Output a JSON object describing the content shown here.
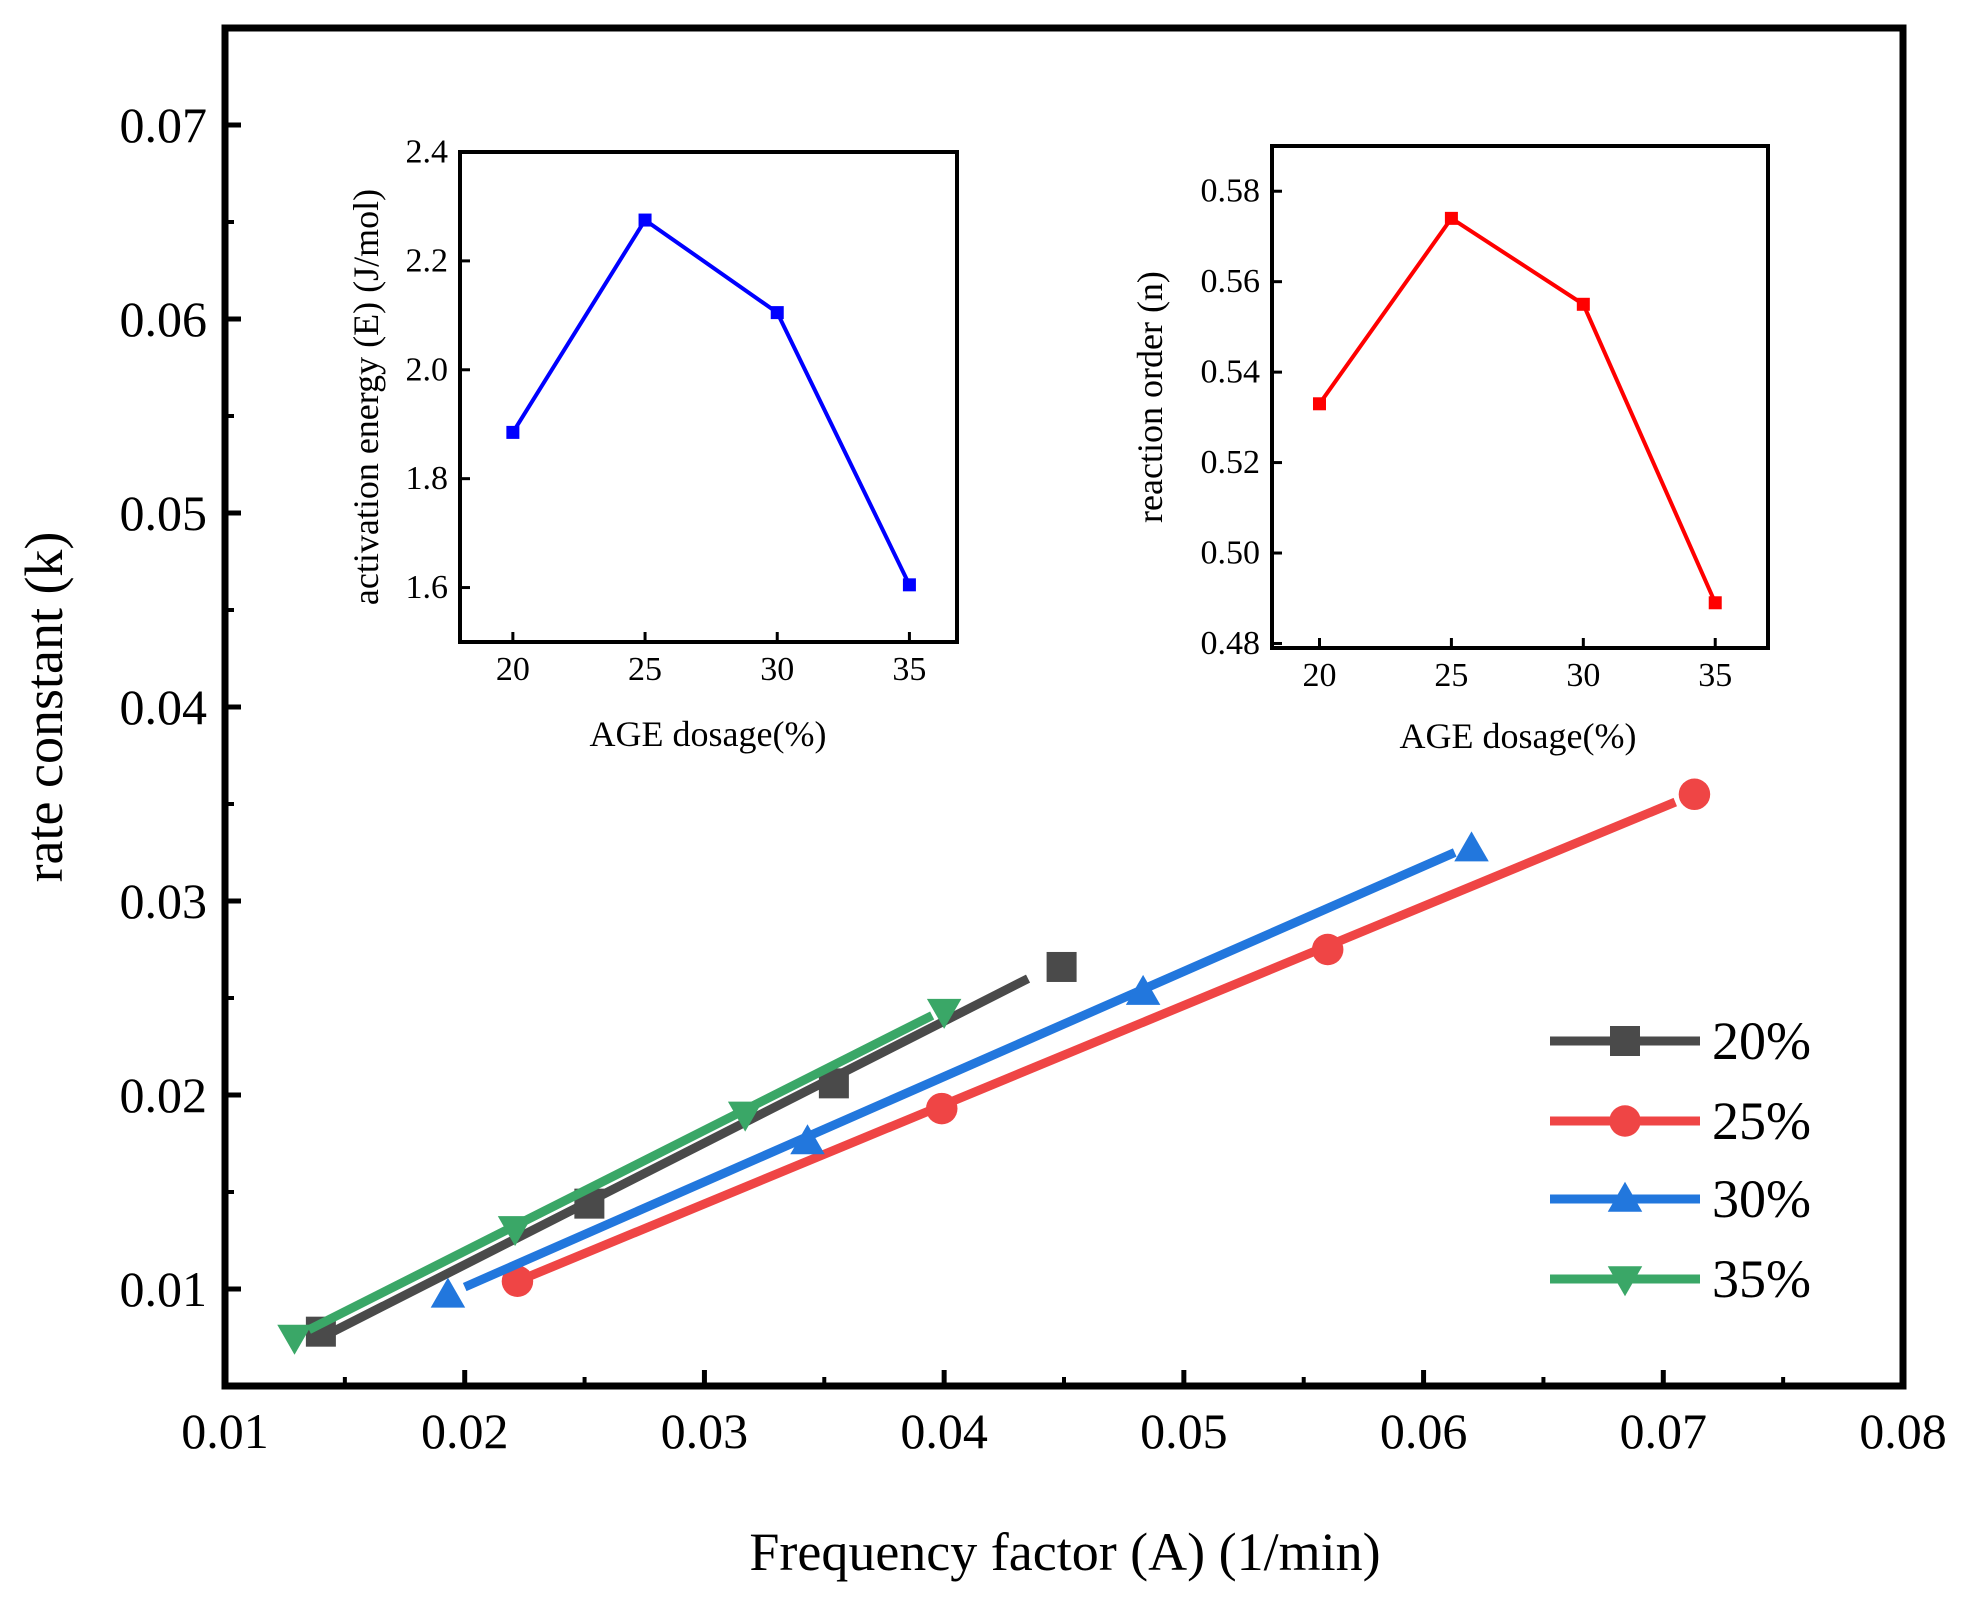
{
  "colors": {
    "s20": "#4a4a4a",
    "s25": "#ef4545",
    "s30": "#2277dd",
    "s35": "#3aa767",
    "inset_energy": "#0000ff",
    "inset_order": "#ff0000"
  },
  "chart_data": [
    {
      "type": "line",
      "xlabel": "Frequency factor (A) (1/min)",
      "ylabel": "rate constant (k)",
      "xlim": [
        0.01,
        0.08
      ],
      "ylim": [
        0.005,
        0.075
      ],
      "xticks": [
        0.01,
        0.02,
        0.03,
        0.04,
        0.05,
        0.06,
        0.07,
        0.08
      ],
      "xtick_labels": [
        "0.01",
        "0.02",
        "0.03",
        "0.04",
        "0.05",
        "0.06",
        "0.07",
        "0.08"
      ],
      "yticks": [
        0.01,
        0.02,
        0.03,
        0.04,
        0.05,
        0.06,
        0.07
      ],
      "ytick_labels": [
        "0.01",
        "0.02",
        "0.03",
        "0.04",
        "0.05",
        "0.06",
        "0.07"
      ],
      "legend_position": "bottom-right",
      "series": [
        {
          "name": "20%",
          "marker": "square",
          "color_key": "s20",
          "points": [
            [
              0.014,
              0.0078
            ],
            [
              0.0252,
              0.0144
            ],
            [
              0.0354,
              0.0206
            ],
            [
              0.0449,
              0.0266
            ]
          ],
          "fit": [
            [
              0.0145,
              0.0078
            ],
            [
              0.0435,
              0.026
            ]
          ]
        },
        {
          "name": "25%",
          "marker": "circle",
          "color_key": "s25",
          "points": [
            [
              0.0222,
              0.0104
            ],
            [
              0.0399,
              0.0193
            ],
            [
              0.056,
              0.0275
            ],
            [
              0.0713,
              0.0355
            ]
          ],
          "fit": [
            [
              0.0222,
              0.0104
            ],
            [
              0.0705,
              0.0351
            ]
          ]
        },
        {
          "name": "30%",
          "marker": "triangle-up",
          "color_key": "s30",
          "points": [
            [
              0.0193,
              0.0097
            ],
            [
              0.0343,
              0.0176
            ],
            [
              0.0483,
              0.0253
            ],
            [
              0.062,
              0.0327
            ]
          ],
          "fit": [
            [
              0.02,
              0.0101
            ],
            [
              0.0613,
              0.0325
            ]
          ]
        },
        {
          "name": "35%",
          "marker": "triangle-down",
          "color_key": "s35",
          "points": [
            [
              0.0129,
              0.0075
            ],
            [
              0.0221,
              0.0131
            ],
            [
              0.0317,
              0.019
            ],
            [
              0.04,
              0.0243
            ]
          ],
          "fit": [
            [
              0.0135,
              0.0079
            ],
            [
              0.0395,
              0.0241
            ]
          ]
        }
      ]
    },
    {
      "type": "line",
      "xlabel": "AGE dosage(%)",
      "ylabel": "activation energy (E) (J/mol)",
      "xlim": [
        18,
        36.8
      ],
      "ylim": [
        1.5,
        2.4
      ],
      "xticks": [
        20,
        25,
        30,
        35
      ],
      "xtick_labels": [
        "20",
        "25",
        "30",
        "35"
      ],
      "yticks": [
        1.6,
        1.8,
        2.0,
        2.2,
        2.4
      ],
      "ytick_labels": [
        "1.6",
        "1.8",
        "2.0",
        "2.2",
        "2.4"
      ],
      "color_key": "inset_energy",
      "x": [
        20,
        25,
        30,
        35
      ],
      "y": [
        1.885,
        2.275,
        2.105,
        1.605
      ]
    },
    {
      "type": "line",
      "xlabel": "AGE dosage(%)",
      "ylabel": "reaction order (n)",
      "xlim": [
        18.2,
        37
      ],
      "ylim": [
        0.479,
        0.59
      ],
      "xticks": [
        20,
        25,
        30,
        35
      ],
      "xtick_labels": [
        "20",
        "25",
        "30",
        "35"
      ],
      "yticks": [
        0.48,
        0.5,
        0.52,
        0.54,
        0.56,
        0.58
      ],
      "ytick_labels": [
        "0.48",
        "0.50",
        "0.52",
        "0.54",
        "0.56",
        "0.58"
      ],
      "color_key": "inset_order",
      "x": [
        20,
        25,
        30,
        35
      ],
      "y": [
        0.533,
        0.574,
        0.555,
        0.489
      ]
    }
  ]
}
